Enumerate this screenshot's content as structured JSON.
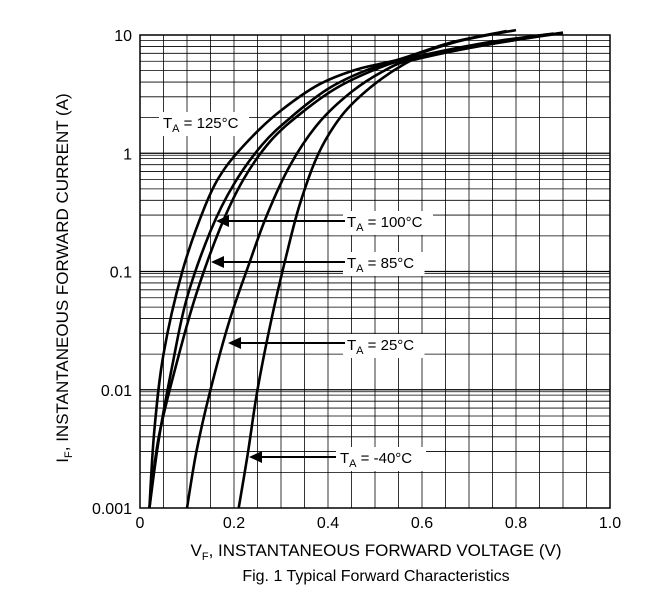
{
  "chart_data": {
    "type": "line",
    "title": "",
    "caption": "Fig. 1 Typical Forward Characteristics",
    "xlabel": {
      "main": "V",
      "sub": "F",
      "rest": ", INSTANTANEOUS FORWARD VOLTAGE (V)"
    },
    "ylabel": {
      "main": "I",
      "sub": "F",
      "rest": ", INSTANTANEOUS FORWARD CURRENT (A)"
    },
    "xlim": [
      0,
      1.0
    ],
    "ylim": [
      0.001,
      10
    ],
    "yscale": "log",
    "grid": true,
    "xticks": [
      "0",
      "0.2",
      "0.4",
      "0.6",
      "0.8",
      "1.0"
    ],
    "xtick_values": [
      0,
      0.2,
      0.4,
      0.6,
      0.8,
      1.0
    ],
    "yticks": [
      "0.001",
      "0.01",
      "0.1",
      "1",
      "10"
    ],
    "ytick_values": [
      0.001,
      0.01,
      0.1,
      1,
      10
    ],
    "series": [
      {
        "name": "125°C",
        "label_main": "T",
        "label_sub": "A",
        "label_rest": " = 125°C",
        "points": [
          [
            0.02,
            0.001
          ],
          [
            0.03,
            0.0043
          ],
          [
            0.05,
            0.02
          ],
          [
            0.09,
            0.1
          ],
          [
            0.14,
            0.37
          ],
          [
            0.18,
            0.74
          ],
          [
            0.24,
            1.4
          ],
          [
            0.3,
            2.3
          ],
          [
            0.38,
            3.8
          ],
          [
            0.46,
            5.1
          ],
          [
            0.55,
            6.2
          ],
          [
            0.66,
            8.6
          ],
          [
            0.78,
            10.8
          ]
        ]
      },
      {
        "name": "100°C",
        "label_main": "T",
        "label_sub": "A",
        "label_rest": " = 100°C",
        "points": [
          [
            0.02,
            0.001
          ],
          [
            0.04,
            0.0038
          ],
          [
            0.07,
            0.017
          ],
          [
            0.1,
            0.06
          ],
          [
            0.15,
            0.22
          ],
          [
            0.2,
            0.55
          ],
          [
            0.26,
            1.18
          ],
          [
            0.32,
            2.0
          ],
          [
            0.4,
            3.5
          ],
          [
            0.48,
            5.0
          ],
          [
            0.56,
            6.3
          ],
          [
            0.68,
            8.9
          ],
          [
            0.8,
            11.0
          ]
        ]
      },
      {
        "name": "85°C",
        "label_main": "T",
        "label_sub": "A",
        "label_rest": " = 85°C",
        "points": [
          [
            0.02,
            0.001
          ],
          [
            0.04,
            0.004
          ],
          [
            0.08,
            0.018
          ],
          [
            0.12,
            0.065
          ],
          [
            0.17,
            0.23
          ],
          [
            0.22,
            0.6
          ],
          [
            0.28,
            1.3
          ],
          [
            0.35,
            2.3
          ],
          [
            0.42,
            3.6
          ],
          [
            0.5,
            5.1
          ],
          [
            0.57,
            6.3
          ],
          [
            0.72,
            8.4
          ],
          [
            0.88,
            10.3
          ]
        ]
      },
      {
        "name": "25°C",
        "label_main": "T",
        "label_sub": "A",
        "label_rest": " = 25°C",
        "points": [
          [
            0.1,
            0.001
          ],
          [
            0.12,
            0.003
          ],
          [
            0.15,
            0.01
          ],
          [
            0.19,
            0.038
          ],
          [
            0.23,
            0.11
          ],
          [
            0.27,
            0.3
          ],
          [
            0.32,
            0.8
          ],
          [
            0.38,
            1.8
          ],
          [
            0.45,
            3.3
          ],
          [
            0.52,
            5.0
          ],
          [
            0.58,
            6.2
          ],
          [
            0.74,
            8.3
          ],
          [
            0.9,
            10.5
          ]
        ]
      },
      {
        "name": "-40°C",
        "label_main": "T",
        "label_sub": "A",
        "label_rest": " = -40°C",
        "points": [
          [
            0.21,
            0.001
          ],
          [
            0.23,
            0.003
          ],
          [
            0.25,
            0.01
          ],
          [
            0.28,
            0.04
          ],
          [
            0.31,
            0.13
          ],
          [
            0.34,
            0.37
          ],
          [
            0.38,
            1.0
          ],
          [
            0.43,
            2.1
          ],
          [
            0.49,
            3.6
          ],
          [
            0.56,
            5.6
          ],
          [
            0.6,
            6.4
          ],
          [
            0.74,
            8.3
          ],
          [
            0.9,
            10.4
          ]
        ]
      }
    ],
    "annotations": [
      {
        "series": "125°C",
        "text_main": "T",
        "text_sub": "A",
        "text_rest": " = 125°C",
        "arrow": false
      },
      {
        "series": "100°C",
        "text_main": "T",
        "text_sub": "A",
        "text_rest": " = 100°C",
        "arrow": true
      },
      {
        "series": "85°C",
        "text_main": "T",
        "text_sub": "A",
        "text_rest": " = 85°C",
        "arrow": true
      },
      {
        "series": "25°C",
        "text_main": "T",
        "text_sub": "A",
        "text_rest": " = 25°C",
        "arrow": true
      },
      {
        "series": "-40°C",
        "text_main": "T",
        "text_sub": "A",
        "text_rest": " = -40°C",
        "arrow": true
      }
    ]
  }
}
